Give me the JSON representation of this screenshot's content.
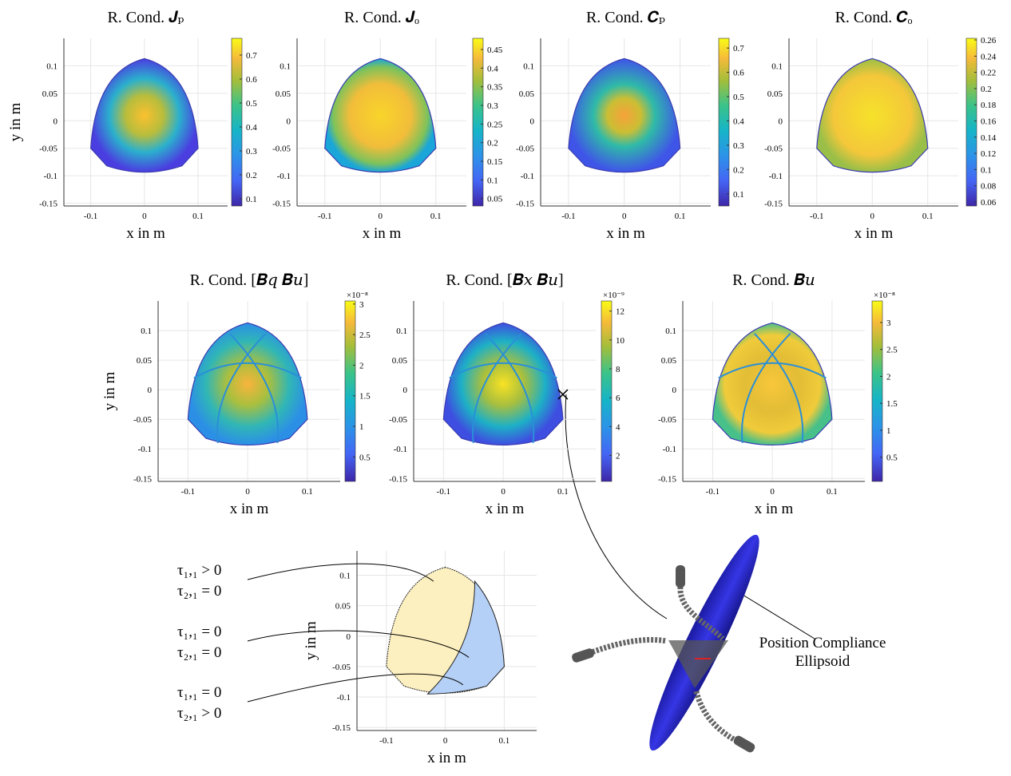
{
  "chart_data": [
    {
      "type": "heatmap",
      "title": "R. Cond. 𝑱ₚ",
      "xlabel": "x in m",
      "ylabel": "y in m",
      "xlim": [
        -0.15,
        0.155
      ],
      "ylim": [
        -0.155,
        0.15
      ],
      "xticks": [
        -0.1,
        0,
        0.1
      ],
      "yticks": [
        -0.15,
        -0.1,
        -0.05,
        0,
        0.05,
        0.1
      ],
      "grid": true,
      "clim": [
        0.07,
        0.77
      ],
      "cticks": [
        0.1,
        0.2,
        0.3,
        0.4,
        0.5,
        0.6,
        0.7
      ]
    },
    {
      "type": "heatmap",
      "title": "R. Cond. 𝑱ₒ",
      "xlabel": "x in m",
      "xlim": [
        -0.15,
        0.155
      ],
      "ylim": [
        -0.155,
        0.15
      ],
      "xticks": [
        -0.1,
        0,
        0.1
      ],
      "yticks": [
        -0.15,
        -0.1,
        -0.05,
        0,
        0.05,
        0.1
      ],
      "grid": true,
      "clim": [
        0.03,
        0.48
      ],
      "cticks": [
        0.05,
        0.1,
        0.15,
        0.2,
        0.25,
        0.3,
        0.35,
        0.4,
        0.45
      ]
    },
    {
      "type": "heatmap",
      "title": "R. Cond. 𝑪ₚ",
      "xlabel": "x in m",
      "xlim": [
        -0.15,
        0.155
      ],
      "ylim": [
        -0.155,
        0.15
      ],
      "xticks": [
        -0.1,
        0,
        0.1
      ],
      "yticks": [
        -0.15,
        -0.1,
        -0.05,
        0,
        0.05,
        0.1
      ],
      "grid": true,
      "clim": [
        0.05,
        0.74
      ],
      "cticks": [
        0.1,
        0.2,
        0.3,
        0.4,
        0.5,
        0.6,
        0.7
      ]
    },
    {
      "type": "heatmap",
      "title": "R. Cond. 𝑪ₒ",
      "xlabel": "x in m",
      "xlim": [
        -0.15,
        0.155
      ],
      "ylim": [
        -0.155,
        0.15
      ],
      "xticks": [
        -0.1,
        0,
        0.1
      ],
      "yticks": [
        -0.15,
        -0.1,
        -0.05,
        0,
        0.05,
        0.1
      ],
      "grid": true,
      "clim": [
        0.055,
        0.262
      ],
      "cticks": [
        0.06,
        0.08,
        0.1,
        0.12,
        0.14,
        0.16,
        0.18,
        0.2,
        0.22,
        0.24,
        0.26
      ]
    },
    {
      "type": "heatmap",
      "title": "R. Cond. [𝑩𝑞  𝑩𝑢]",
      "xlabel": "x in m",
      "ylabel": "y in m",
      "xlim": [
        -0.15,
        0.155
      ],
      "ylim": [
        -0.155,
        0.15
      ],
      "xticks": [
        -0.1,
        0,
        0.1
      ],
      "yticks": [
        -0.15,
        -0.1,
        -0.05,
        0,
        0.05,
        0.1
      ],
      "grid": true,
      "clim": [
        0.1,
        3.05
      ],
      "cticks": [
        0.5,
        1,
        1.5,
        2,
        2.5,
        3
      ],
      "cexponent": "×10⁻⁸"
    },
    {
      "type": "heatmap",
      "title": "R. Cond. [𝑩𝑥  𝑩𝑢]",
      "xlabel": "x in m",
      "xlim": [
        -0.15,
        0.155
      ],
      "ylim": [
        -0.155,
        0.15
      ],
      "xticks": [
        -0.1,
        0,
        0.1
      ],
      "yticks": [
        -0.15,
        -0.1,
        -0.05,
        0,
        0.05,
        0.1
      ],
      "grid": true,
      "clim": [
        0.2,
        12.7
      ],
      "cticks": [
        2,
        4,
        6,
        8,
        10,
        12
      ],
      "cexponent": "×10⁻⁹"
    },
    {
      "type": "heatmap",
      "title": "R. Cond. 𝑩𝑢",
      "xlabel": "x in m",
      "xlim": [
        -0.15,
        0.155
      ],
      "ylim": [
        -0.155,
        0.15
      ],
      "xticks": [
        -0.1,
        0,
        0.1
      ],
      "yticks": [
        -0.15,
        -0.1,
        -0.05,
        0,
        0.05,
        0.1
      ],
      "grid": true,
      "clim": [
        0.05,
        3.4
      ],
      "cticks": [
        0.5,
        1,
        1.5,
        2,
        2.5,
        3
      ],
      "cexponent": "×10⁻⁸"
    },
    {
      "type": "region",
      "xlabel": "x in m",
      "ylabel": "y in m",
      "xlim": [
        -0.15,
        0.155
      ],
      "ylim": [
        -0.155,
        0.14
      ],
      "xticks": [
        -0.1,
        0,
        0.1
      ],
      "yticks": [
        -0.15,
        -0.1,
        -0.05,
        0,
        0.05,
        0.1
      ],
      "grid": true,
      "annotations": [
        "τ₁,₁ > 0",
        "τ₂,₁ = 0",
        "τ₁,₁ = 0",
        "τ₂,₁ = 0",
        "τ₁,₁ = 0",
        "τ₂,₁ > 0"
      ]
    }
  ],
  "figure": {
    "ellipsoid_label": [
      "Position Compliance",
      "Ellipsoid"
    ]
  }
}
